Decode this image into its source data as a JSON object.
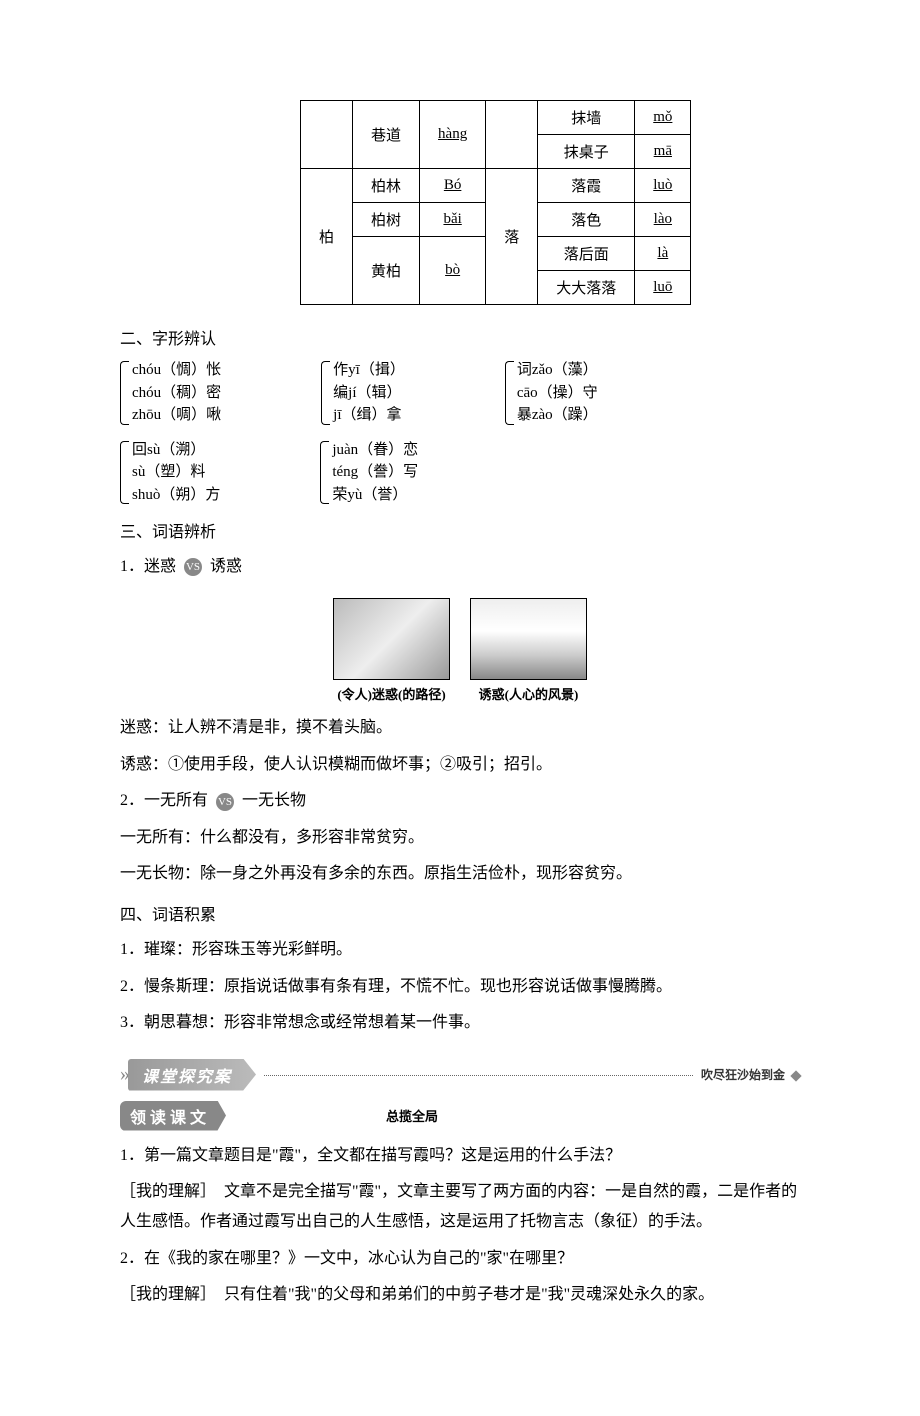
{
  "pronunciation_table": {
    "rows": [
      {
        "leftChar": "",
        "word": "巷道",
        "pinyin": "hàng",
        "rightChar": "",
        "rightWord": "抹墙",
        "rightPinyin": "mǒ"
      },
      {
        "leftChar": "",
        "word": "",
        "pinyin": "",
        "rightChar": "",
        "rightWord": "抹桌子",
        "rightPinyin": "mā"
      },
      {
        "leftChar": "柏",
        "word": "柏林",
        "pinyin": "Bó",
        "rightChar": "落",
        "rightWord": "落霞",
        "rightPinyin": "luò"
      },
      {
        "leftChar": "",
        "word": "柏树",
        "pinyin": "bǎi",
        "rightChar": "",
        "rightWord": "落色",
        "rightPinyin": "lào"
      },
      {
        "leftChar": "",
        "word": "黄柏",
        "pinyin": "bò",
        "rightChar": "",
        "rightWord": "落后面",
        "rightPinyin": "là"
      },
      {
        "leftChar": "",
        "word": "",
        "pinyin": "",
        "rightChar": "",
        "rightWord": "大大落落",
        "rightPinyin": "luō"
      }
    ]
  },
  "section2_title": "二、字形辨认",
  "char_groups_row1": [
    [
      "chóu（惆）怅",
      "chóu（稠）密",
      "zhōu（啁）啾"
    ],
    [
      "作yī（揖）",
      "编jí（辑）",
      "jī（缉）拿"
    ],
    [
      "词zǎo（藻）",
      "cāo（操）守",
      "暴zào（躁）"
    ]
  ],
  "char_groups_row2": [
    [
      "回sù（溯）",
      "sù（塑）料",
      "shuò（朔）方"
    ],
    [
      "juàn（眷）恋",
      "téng（誊）写",
      "荣yù（誉）"
    ]
  ],
  "section3_title": "三、词语辨析",
  "item3_1_label": "1．迷惑",
  "vs_text": "VS",
  "item3_1_right": "诱惑",
  "img1_caption": "(令人)迷惑(的路径)",
  "img2_caption": "诱惑(人心的风景)",
  "def_mihuo": "迷惑：让人辨不清是非，摸不着头脑。",
  "def_youhuo": "诱惑：①使用手段，使人认识模糊而做坏事；②吸引；招引。",
  "item3_2_label": "2．一无所有",
  "item3_2_right": "一无长物",
  "def_yiwusuoyou": "一无所有：什么都没有，多形容非常贫穷。",
  "def_yiwuchangwu": "一无长物：除一身之外再没有多余的东西。原指生活俭朴，现形容贫穷。",
  "section4_title": "四、词语积累",
  "vocab1": "1．璀璨：形容珠玉等光彩鲜明。",
  "vocab2": "2．慢条斯理：原指说话做事有条有理，不慌不忙。现也形容说话做事慢腾腾。",
  "vocab3": "3．朝思暮想：形容非常想念或经常想着某一件事。",
  "banner1_text": "课堂探究案",
  "banner1_right": "吹尽狂沙始到金",
  "banner2_text": "领读课文",
  "banner2_caption": "总揽全局",
  "q1": "1．第一篇文章题目是\"霞\"，全文都在描写霞吗？这是运用的什么手法？",
  "a1": "［我的理解］　文章不是完全描写\"霞\"，文章主要写了两方面的内容：一是自然的霞，二是作者的人生感悟。作者通过霞写出自己的人生感悟，这是运用了托物言志（象征）的手法。",
  "q2": "2．在《我的家在哪里？》一文中，冰心认为自己的\"家\"在哪里？",
  "a2": "［我的理解］　只有住着\"我\"的父母和弟弟们的中剪子巷才是\"我\"灵魂深处永久的家。"
}
